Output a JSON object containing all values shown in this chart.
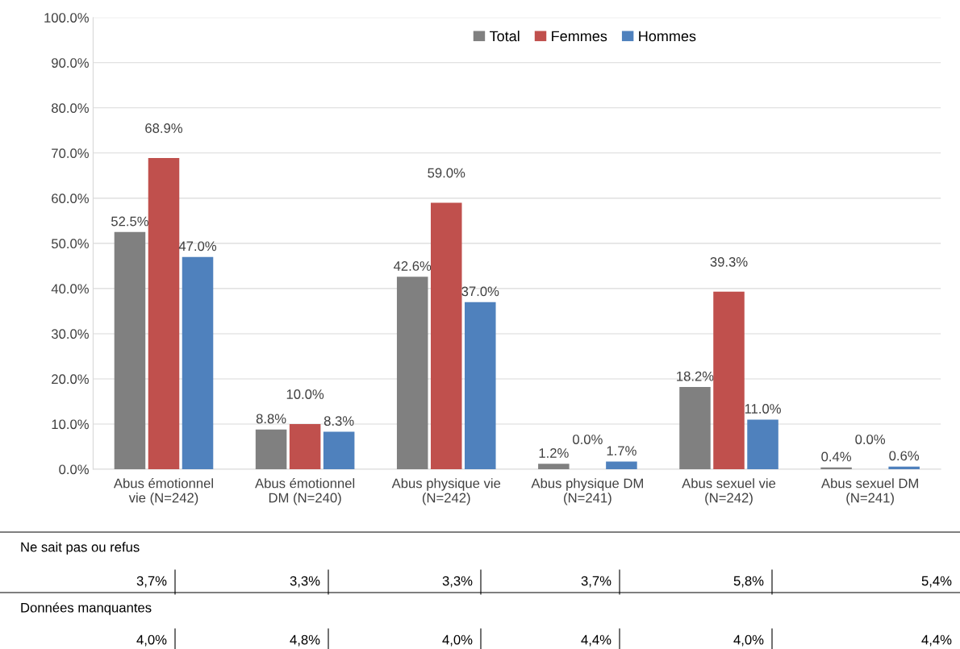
{
  "chart_data": {
    "type": "bar",
    "categories": [
      "Abus émotionnel\nvie (N=242)",
      "Abus émotionnel\nDM (N=240)",
      "Abus physique vie\n(N=242)",
      "Abus physique DM\n(N=241)",
      "Abus sexuel vie\n(N=242)",
      "Abus sexuel DM\n(N=241)"
    ],
    "series": [
      {
        "name": "Total",
        "color": "#808080",
        "values": [
          52.5,
          8.8,
          42.6,
          1.2,
          18.2,
          0.4
        ],
        "value_labels": [
          "52.5%",
          "8.8%",
          "42.6%",
          "1.2%",
          "18.2%",
          "0.4%"
        ]
      },
      {
        "name": "Femmes",
        "color": "#c0504d",
        "values": [
          68.9,
          10.0,
          59.0,
          0.0,
          39.3,
          0.0
        ],
        "value_labels": [
          "68.9%",
          "10.0%",
          "59.0%",
          "0.0%",
          "39.3%",
          "0.0%"
        ]
      },
      {
        "name": "Hommes",
        "color": "#4f81bd",
        "values": [
          47.0,
          8.3,
          37.0,
          1.7,
          11.0,
          0.6
        ],
        "value_labels": [
          "47.0%",
          "8.3%",
          "37.0%",
          "1.7%",
          "11.0%",
          "0.6%"
        ]
      }
    ],
    "ylim": [
      0,
      100
    ],
    "yticks": [
      {
        "value": 0,
        "label": "0.0%"
      },
      {
        "value": 10,
        "label": "10.0%"
      },
      {
        "value": 20,
        "label": "20.0%"
      },
      {
        "value": 30,
        "label": "30.0%"
      },
      {
        "value": 40,
        "label": "40.0%"
      },
      {
        "value": 50,
        "label": "50.0%"
      },
      {
        "value": 60,
        "label": "60.0%"
      },
      {
        "value": 70,
        "label": "70.0%"
      },
      {
        "value": 80,
        "label": "80.0%"
      },
      {
        "value": 90,
        "label": "90.0%"
      },
      {
        "value": 100,
        "label": "100.0%"
      }
    ],
    "grid": "y",
    "legend": "top",
    "annotations": [
      "Ne sait pas ou refus",
      "3,7%",
      "3,3%",
      "3,3%",
      "3,7%",
      "5,8%",
      "5,4%",
      "Données manquantes",
      "4,0%",
      "4,8%",
      "4,0%",
      "4,4%",
      "4,0%",
      "4,4%"
    ]
  }
}
